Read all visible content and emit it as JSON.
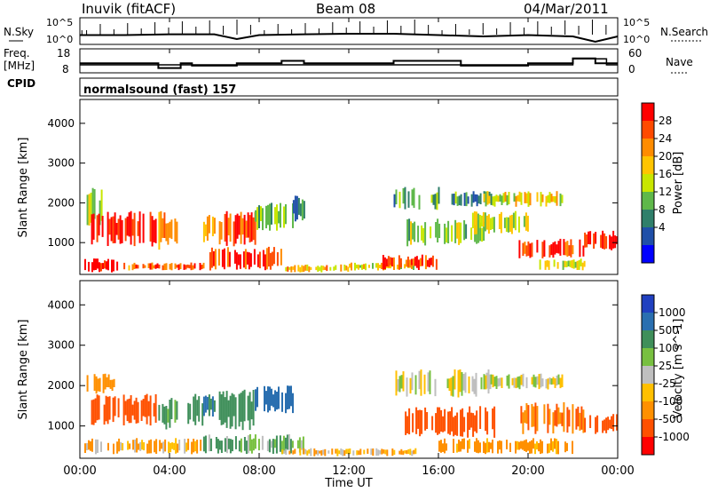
{
  "header": {
    "station": "Inuvik (fitACF)",
    "beam": "Beam 08",
    "date": "04/Mar/2011"
  },
  "noise_panel": {
    "left_label": "N.Sky",
    "right_label": "N.Search",
    "tick_high": "10^5",
    "tick_low": "10^0"
  },
  "freq_panel": {
    "left_label_line1": "Freq.",
    "left_label_line2": "[MHz]",
    "left_ticks": [
      "18",
      "8"
    ],
    "right_label": "Nave",
    "right_ticks": [
      "60",
      "0"
    ]
  },
  "cpid": {
    "label": "CPID",
    "program": "normalsound (fast) 157"
  },
  "x_axis": {
    "label": "Time UT",
    "ticks": [
      "00:00",
      "04:00",
      "08:00",
      "12:00",
      "16:00",
      "20:00",
      "00:00"
    ]
  },
  "power_colorbar": {
    "label": "Power [dB]",
    "ticks": [
      "28",
      "24",
      "20",
      "16",
      "12",
      "8",
      "4"
    ],
    "colors": [
      "#ff0000",
      "#ff4a00",
      "#ff8c00",
      "#ffc400",
      "#c8e600",
      "#5fb84a",
      "#2f7f6a",
      "#1f4fa8",
      "#0000ff"
    ]
  },
  "velocity_colorbar": {
    "label": "Velocity [m s^-1]",
    "ticks": [
      "1000",
      "500",
      "100",
      "25",
      "-25",
      "-100",
      "-500",
      "-1000"
    ],
    "colors": [
      "#2040c0",
      "#2a6fb0",
      "#3f8f5a",
      "#78c040",
      "#bfbfbf",
      "#ffc000",
      "#ff9000",
      "#ff5000",
      "#ff0000"
    ]
  },
  "chart_data": [
    {
      "type": "line",
      "panel": "noise",
      "x_label": "",
      "y_label": "",
      "series": [
        {
          "name": "N.Sky",
          "x": [
            0,
            2,
            4,
            6,
            7,
            8,
            10,
            12,
            14,
            16,
            18,
            20,
            22,
            23,
            24
          ],
          "y": [
            0.35,
            0.35,
            0.38,
            0.38,
            0.2,
            0.35,
            0.38,
            0.4,
            0.4,
            0.35,
            0.3,
            0.35,
            0.3,
            0.1,
            0.3
          ]
        }
      ],
      "x_range": [
        0,
        24
      ]
    },
    {
      "type": "line",
      "panel": "frequency",
      "x_label": "",
      "y_label": "Freq. [MHz]",
      "series": [
        {
          "name": "Freq.",
          "x": [
            0,
            2,
            2,
            3.5,
            3.5,
            4.5,
            4.5,
            5,
            5,
            7,
            7,
            9,
            9,
            10,
            10,
            14,
            14,
            17,
            17,
            20,
            20,
            22,
            22,
            23,
            23,
            24
          ],
          "y": [
            12,
            12,
            12,
            12,
            10,
            10,
            12,
            12,
            11,
            11,
            12,
            12,
            13,
            13,
            12,
            12,
            13,
            13,
            11,
            11,
            12,
            12,
            14,
            14,
            12,
            12
          ]
        },
        {
          "name": "Nave",
          "x": [
            0,
            22,
            22,
            23.5,
            23.5,
            24
          ],
          "y": [
            20,
            20,
            35,
            35,
            20,
            20
          ]
        }
      ],
      "y_range": [
        8,
        18
      ],
      "x_range": [
        0,
        24
      ]
    },
    {
      "type": "heatmap",
      "panel": "power",
      "x_label": "Time UT",
      "y_label": "Slant Range [km]",
      "y_ticks": [
        1000,
        2000,
        3000,
        4000
      ],
      "y_range": [
        200,
        4600
      ],
      "x_range": [
        0,
        24
      ],
      "value_label": "Power [dB]",
      "value_ticks": [
        4,
        8,
        12,
        16,
        20,
        24,
        28
      ],
      "regions": [
        {
          "t": [
            0.3,
            1.0
          ],
          "r": [
            1400,
            2400
          ],
          "v": 12
        },
        {
          "t": [
            0.5,
            3.5
          ],
          "r": [
            900,
            1800
          ],
          "v": 28
        },
        {
          "t": [
            3.5,
            4.3
          ],
          "r": [
            800,
            1800
          ],
          "v": 22
        },
        {
          "t": [
            5.5,
            6.0
          ],
          "r": [
            1000,
            1700
          ],
          "v": 20
        },
        {
          "t": [
            6.2,
            7.8
          ],
          "r": [
            900,
            1800
          ],
          "v": 24
        },
        {
          "t": [
            7.8,
            9.5
          ],
          "r": [
            1300,
            2000
          ],
          "v": 10
        },
        {
          "t": [
            9.5,
            10.0
          ],
          "r": [
            1500,
            2200
          ],
          "v": 8
        },
        {
          "t": [
            0.2,
            2.0
          ],
          "r": [
            250,
            600
          ],
          "v": 28
        },
        {
          "t": [
            2.0,
            5.5
          ],
          "r": [
            300,
            500
          ],
          "v": 24
        },
        {
          "t": [
            5.7,
            9.0
          ],
          "r": [
            300,
            900
          ],
          "v": 26
        },
        {
          "t": [
            9.0,
            12.0
          ],
          "r": [
            250,
            450
          ],
          "v": 18
        },
        {
          "t": [
            12.0,
            15.0
          ],
          "r": [
            300,
            500
          ],
          "v": 16
        },
        {
          "t": [
            13.5,
            16.0
          ],
          "r": [
            300,
            700
          ],
          "v": 26
        },
        {
          "t": [
            14.0,
            16.0
          ],
          "r": [
            1800,
            2400
          ],
          "v": 10
        },
        {
          "t": [
            14.5,
            18.0
          ],
          "r": [
            900,
            1600
          ],
          "v": 12
        },
        {
          "t": [
            16.5,
            18.5
          ],
          "r": [
            1900,
            2300
          ],
          "v": 8
        },
        {
          "t": [
            17.5,
            20.0
          ],
          "r": [
            1200,
            1800
          ],
          "v": 14
        },
        {
          "t": [
            18.0,
            21.5
          ],
          "r": [
            1900,
            2300
          ],
          "v": 16
        },
        {
          "t": [
            19.5,
            22.5
          ],
          "r": [
            600,
            1100
          ],
          "v": 26
        },
        {
          "t": [
            22.5,
            24.0
          ],
          "r": [
            800,
            1300
          ],
          "v": 28
        },
        {
          "t": [
            20.5,
            22.5
          ],
          "r": [
            300,
            600
          ],
          "v": 14
        }
      ]
    },
    {
      "type": "heatmap",
      "panel": "velocity",
      "x_label": "Time UT",
      "y_label": "Slant Range [km]",
      "y_ticks": [
        1000,
        2000,
        3000,
        4000
      ],
      "y_range": [
        200,
        4600
      ],
      "x_range": [
        0,
        24
      ],
      "value_label": "Velocity [m s^-1]",
      "value_ticks": [
        -1000,
        -500,
        -100,
        -25,
        25,
        100,
        500,
        1000
      ],
      "regions": [
        {
          "t": [
            0.5,
            3.5
          ],
          "r": [
            1000,
            1800
          ],
          "v": -400
        },
        {
          "t": [
            0.3,
            1.5
          ],
          "r": [
            1800,
            2300
          ],
          "v": -200
        },
        {
          "t": [
            3.5,
            4.3
          ],
          "r": [
            900,
            1700
          ],
          "v": 80
        },
        {
          "t": [
            4.8,
            5.5
          ],
          "r": [
            1000,
            1800
          ],
          "v": 150
        },
        {
          "t": [
            5.5,
            6.0
          ],
          "r": [
            1200,
            1800
          ],
          "v": 300
        },
        {
          "t": [
            6.2,
            7.8
          ],
          "r": [
            900,
            1900
          ],
          "v": 150
        },
        {
          "t": [
            7.8,
            9.5
          ],
          "r": [
            1300,
            2000
          ],
          "v": 400
        },
        {
          "t": [
            0.2,
            5.5
          ],
          "r": [
            300,
            700
          ],
          "v": -60
        },
        {
          "t": [
            5.5,
            10.0
          ],
          "r": [
            300,
            800
          ],
          "v": 60
        },
        {
          "t": [
            9.0,
            15.0
          ],
          "r": [
            250,
            450
          ],
          "v": -60
        },
        {
          "t": [
            14.0,
            18.5
          ],
          "r": [
            1700,
            2400
          ],
          "v": 0
        },
        {
          "t": [
            14.5,
            18.5
          ],
          "r": [
            700,
            1500
          ],
          "v": -400
        },
        {
          "t": [
            18.0,
            21.5
          ],
          "r": [
            1900,
            2300
          ],
          "v": 0
        },
        {
          "t": [
            19.5,
            22.5
          ],
          "r": [
            800,
            1600
          ],
          "v": -300
        },
        {
          "t": [
            22.5,
            24.0
          ],
          "r": [
            800,
            1300
          ],
          "v": -400
        },
        {
          "t": [
            16.0,
            22.0
          ],
          "r": [
            300,
            700
          ],
          "v": -100
        }
      ]
    }
  ]
}
